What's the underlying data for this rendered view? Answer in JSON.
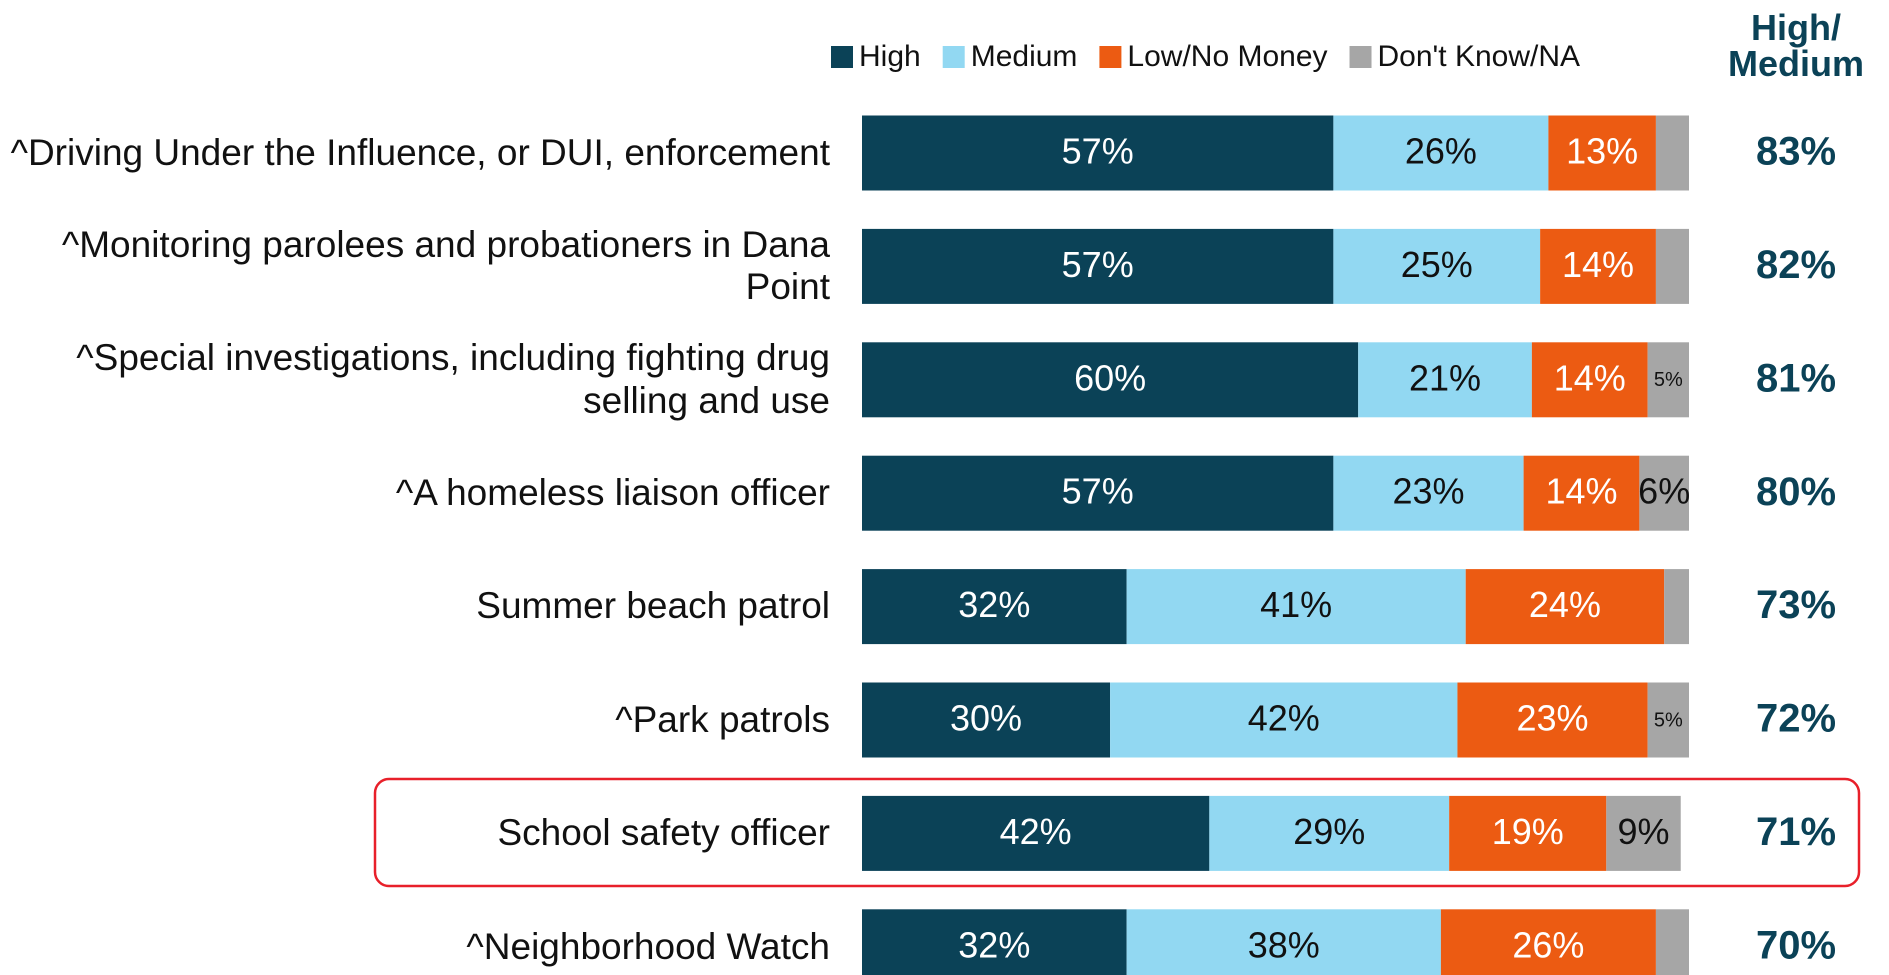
{
  "chart_data": {
    "type": "stacked_bar_horizontal",
    "categories": [
      "^Driving Under the Influence, or DUI, enforcement",
      "^Monitoring parolees and probationers in Dana Point",
      "^Special investigations, including fighting drug selling and use",
      "^A homeless liaison officer",
      "Summer beach patrol",
      "^Park patrols",
      "School safety officer",
      "^Neighborhood Watch"
    ],
    "series": [
      {
        "name": "High",
        "color": "#0b4257",
        "values": [
          57,
          57,
          60,
          57,
          32,
          30,
          42,
          32
        ],
        "value_labels": [
          "57%",
          "57%",
          "60%",
          "57%",
          "32%",
          "30%",
          "42%",
          "32%"
        ]
      },
      {
        "name": "Medium",
        "color": "#92d8f2",
        "values": [
          26,
          25,
          21,
          23,
          41,
          42,
          29,
          38
        ],
        "value_labels": [
          "26%",
          "25%",
          "21%",
          "23%",
          "41%",
          "42%",
          "29%",
          "38%"
        ]
      },
      {
        "name": "Low/No Money",
        "color": "#ec5b12",
        "values": [
          13,
          14,
          14,
          14,
          24,
          23,
          19,
          26
        ],
        "value_labels": [
          "13%",
          "14%",
          "14%",
          "14%",
          "24%",
          "23%",
          "19%",
          "26%"
        ]
      },
      {
        "name": "Don't Know/NA",
        "color": "#a6a6a6",
        "values": [
          4,
          4,
          5,
          6,
          3,
          5,
          9,
          4
        ],
        "value_labels": [
          null,
          null,
          "5%",
          "6%",
          null,
          "5%",
          "9%",
          null
        ]
      }
    ],
    "net": {
      "name": "High/ Medium",
      "color": "#0b4257",
      "values": [
        83,
        82,
        81,
        80,
        73,
        72,
        71,
        70
      ],
      "value_labels": [
        "83%",
        "82%",
        "81%",
        "80%",
        "73%",
        "72%",
        "71%",
        "70%"
      ]
    },
    "xlim": [
      0,
      100
    ],
    "legend": "top"
  }
}
